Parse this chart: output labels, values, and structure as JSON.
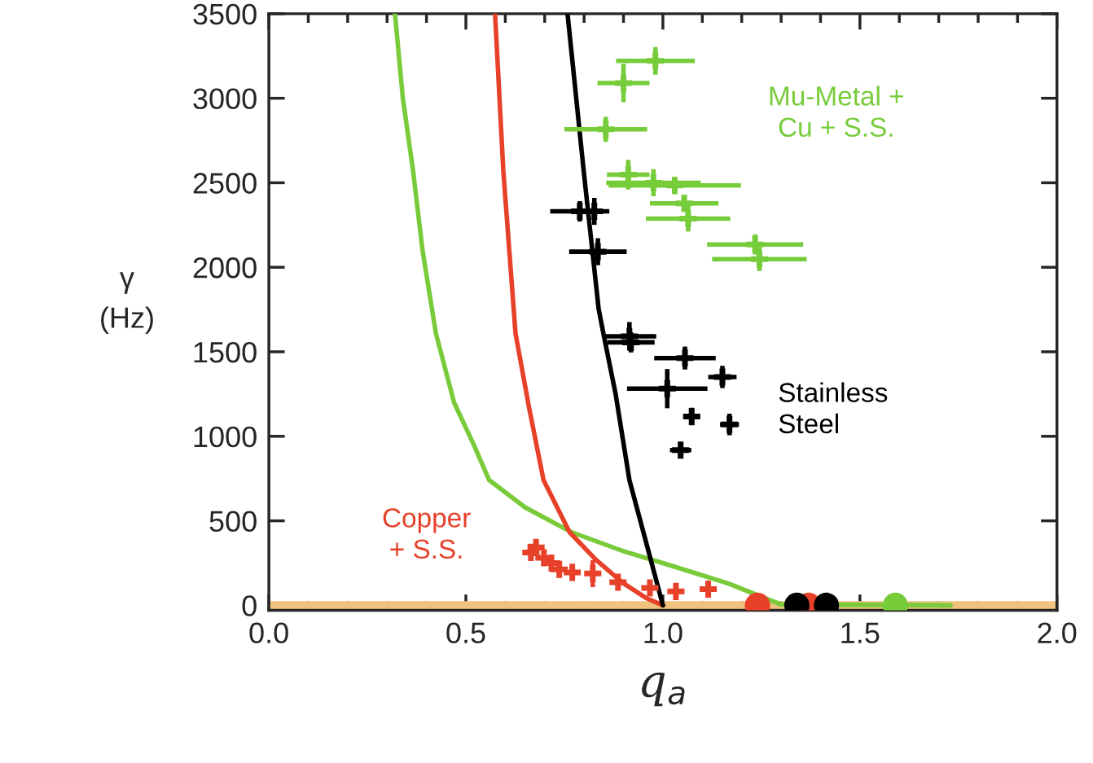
{
  "chart_data": {
    "type": "scatter",
    "xlabel": "q$_{a}$",
    "ylabel": "γ\n(Hz)",
    "xlim": [
      0.0,
      2.0
    ],
    "ylim": [
      -30,
      3500
    ],
    "xticks": [
      {
        "value": 0.0,
        "label": "0.0"
      },
      {
        "value": 0.5,
        "label": "0.5"
      },
      {
        "value": 1.0,
        "label": "1.0"
      },
      {
        "value": 1.5,
        "label": "1.5"
      },
      {
        "value": 2.0,
        "label": "2.0"
      }
    ],
    "yticks": [
      0,
      500,
      1000,
      1500,
      2000,
      2500,
      3000,
      3500
    ],
    "grid": false,
    "legend": false,
    "bands": [
      {
        "axis": "y",
        "from": -25,
        "to": 25,
        "color": "#efc27e"
      }
    ],
    "series": [
      {
        "type": "line",
        "color": "#7acb3a",
        "x": [
          0.32,
          0.34,
          0.366,
          0.39,
          0.424,
          0.47,
          0.52,
          0.559,
          0.65,
          0.768,
          0.9,
          1.0,
          1.165,
          1.3,
          1.73
        ],
        "values": [
          3500,
          3000,
          2570,
          2100,
          1608,
          1200,
          950,
          741,
          580,
          433,
          320,
          250,
          130,
          5,
          0
        ]
      },
      {
        "type": "line",
        "color": "#e8412a",
        "x": [
          0.574,
          0.595,
          0.626,
          0.66,
          0.697,
          0.763,
          0.83,
          0.9,
          0.96,
          1.0
        ],
        "values": [
          3500,
          2570,
          1608,
          1174,
          741,
          433,
          270,
          130,
          40,
          0
        ]
      },
      {
        "type": "line",
        "color": "#000000",
        "x": [
          0.758,
          0.799,
          0.837,
          0.849,
          0.88,
          0.915,
          0.96,
          1.0
        ],
        "values": [
          3500,
          2570,
          1752,
          1608,
          1250,
          741,
          350,
          0
        ]
      },
      {
        "name": "Mu-Metal +\nCu + S.S.",
        "color": "#77cc3a",
        "marker": "cross",
        "x": [
          0.981,
          0.9,
          0.855,
          0.912,
          0.976,
          1.03,
          1.054,
          1.064,
          1.234,
          1.245
        ],
        "values": [
          3221,
          3090,
          2816,
          2548,
          2500,
          2484,
          2378,
          2288,
          2135,
          2048
        ],
        "xerrors": [
          0.1,
          0.066,
          0.105,
          0.054,
          0.12,
          0.168,
          0.087,
          0.107,
          0.122,
          0.12
        ],
        "errors": [
          82,
          113,
          74,
          88,
          80,
          52,
          50,
          77,
          60,
          70
        ]
      },
      {
        "name": "Stainless\nSteel",
        "color": "#000000",
        "marker": "cross",
        "x": [
          0.789,
          0.826,
          0.835,
          0.915,
          0.919,
          1.056,
          1.151,
          1.011,
          1.073,
          1.169,
          1.045
        ],
        "values": [
          2331,
          2331,
          2092,
          1592,
          1556,
          1463,
          1351,
          1282,
          1117,
          1070,
          918
        ],
        "xerrors": [
          0.075,
          null,
          0.073,
          0.068,
          0.06,
          0.078,
          0.036,
          0.102,
          0.021,
          0.024,
          0.027
        ],
        "errors": [
          60,
          80,
          80,
          84,
          60,
          68,
          66,
          116,
          52,
          64,
          46
        ]
      },
      {
        "name": "Copper\n+ S.S.",
        "color": "#e8412a",
        "marker": "cross",
        "x": [
          0.678,
          0.665,
          0.698,
          0.717,
          0.737,
          0.77,
          0.822,
          0.886,
          0.967,
          1.033,
          1.115
        ],
        "values": [
          342,
          313,
          281,
          250,
          213,
          195,
          188,
          137,
          103,
          82,
          96
        ],
        "errors": [
          null,
          null,
          null,
          null,
          null,
          null,
          80,
          null,
          null,
          null,
          null
        ]
      },
      {
        "color": "#e8412a",
        "marker": "circle",
        "x": [
          1.24,
          1.37
        ],
        "values": [
          0,
          0
        ]
      },
      {
        "color": "#000000",
        "marker": "circle",
        "x": [
          1.34,
          1.415
        ],
        "values": [
          0,
          0
        ]
      },
      {
        "color": "#77cc3a",
        "marker": "circle",
        "x": [
          1.59
        ],
        "values": [
          0
        ]
      }
    ]
  }
}
